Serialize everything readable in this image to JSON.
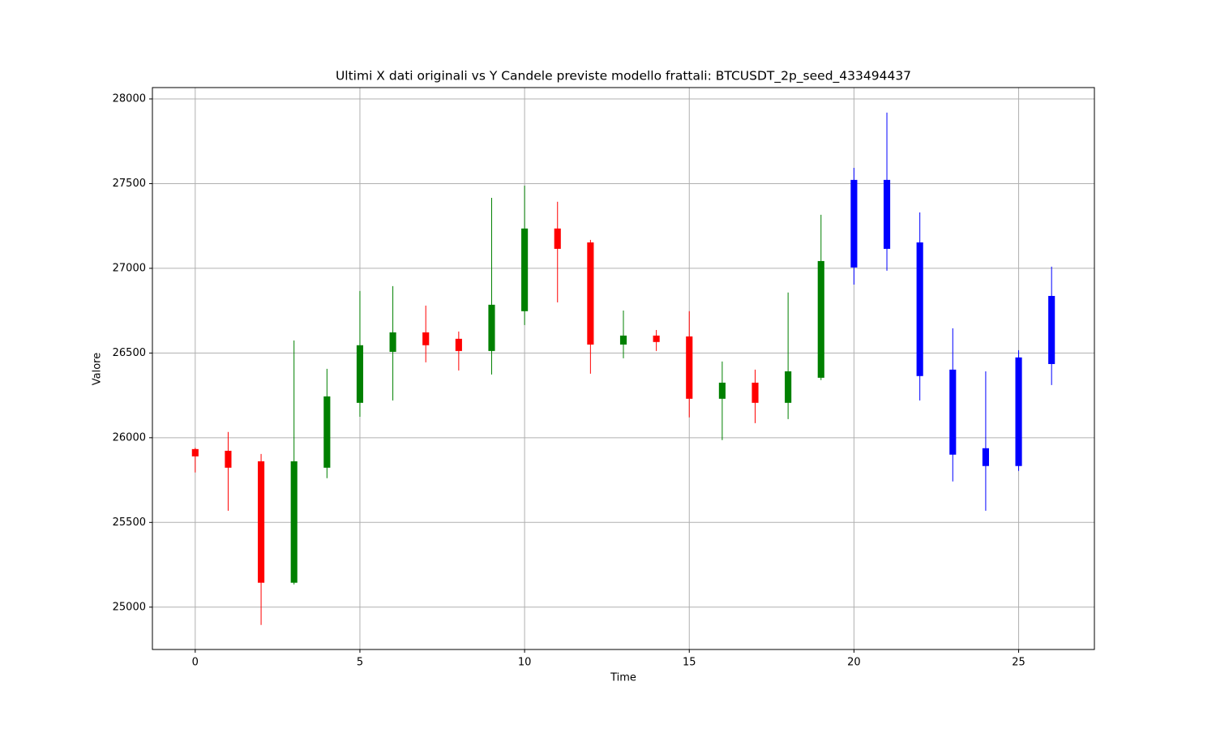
{
  "chart_data": {
    "type": "candlestick",
    "title": "Ultimi X dati originali vs Y Candele previste modello frattali: BTCUSDT_2p_seed_433494437",
    "x_label": "Time",
    "y_label": "Valore",
    "x": [
      0,
      1,
      2,
      3,
      4,
      5,
      6,
      7,
      8,
      9,
      10,
      11,
      12,
      13,
      14,
      15,
      16,
      17,
      18,
      19,
      20,
      21,
      22,
      23,
      24,
      25,
      26
    ],
    "open": [
      25933,
      25923,
      25861,
      25144,
      25823,
      26206,
      26507,
      26622,
      26584,
      26512,
      26747,
      27235,
      27153,
      26550,
      26603,
      26598,
      26230,
      26325,
      26206,
      26354,
      27005,
      27522,
      27153,
      26402,
      25938,
      25833,
      26435
    ],
    "high": [
      25940,
      26034,
      25904,
      26574,
      26407,
      26866,
      26895,
      26780,
      26627,
      27416,
      27488,
      27393,
      27168,
      26751,
      26636,
      26747,
      26450,
      26402,
      26857,
      27316,
      27593,
      27919,
      27330,
      26646,
      26392,
      26517,
      27010
    ],
    "low": [
      25795,
      25569,
      24895,
      25134,
      25761,
      26124,
      26220,
      26445,
      26397,
      26373,
      26665,
      26799,
      26378,
      26469,
      26512,
      26120,
      25986,
      26086,
      26110,
      26340,
      26904,
      26986,
      26220,
      25742,
      25569,
      25804,
      26311
    ],
    "close": [
      25890,
      25823,
      25144,
      25861,
      26244,
      26546,
      26622,
      26546,
      26512,
      26785,
      27235,
      27115,
      26550,
      26603,
      26565,
      26230,
      26325,
      26206,
      26392,
      27043,
      27522,
      27115,
      26364,
      25900,
      25833,
      26474,
      26837
    ],
    "colors": [
      "red",
      "red",
      "red",
      "green",
      "green",
      "green",
      "green",
      "red",
      "red",
      "green",
      "green",
      "red",
      "red",
      "green",
      "red",
      "red",
      "green",
      "red",
      "green",
      "green",
      "blue",
      "blue",
      "blue",
      "blue",
      "blue",
      "blue",
      "blue"
    ],
    "xlim": [
      -1.3,
      27.3
    ],
    "ylim": [
      24750,
      28067
    ],
    "xticks": [
      0,
      5,
      10,
      15,
      20,
      25
    ],
    "yticks": [
      25000,
      25500,
      26000,
      26500,
      27000,
      27500,
      28000
    ],
    "grid": true
  }
}
